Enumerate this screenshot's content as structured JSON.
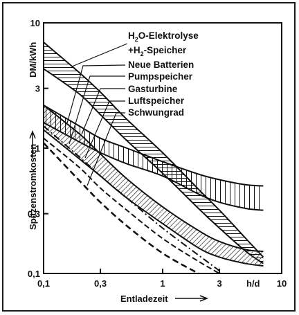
{
  "chart_data": {
    "type": "line",
    "title": "",
    "xlabel": "Entladezeit",
    "x_unit": "h/d",
    "ylabel": "Spitzenstromkosten",
    "y_unit": "DM/kWh",
    "xscale": "log",
    "yscale": "log",
    "xlim": [
      0.1,
      10
    ],
    "ylim": [
      0.1,
      10
    ],
    "x_ticks": [
      {
        "value": 0.1,
        "label": "0,1"
      },
      {
        "value": 0.3,
        "label": "0,3"
      },
      {
        "value": 1,
        "label": "1"
      },
      {
        "value": 3,
        "label": "3"
      },
      {
        "value": 10,
        "label": "10"
      }
    ],
    "y_ticks": [
      {
        "value": 0.1,
        "label": "0,1"
      },
      {
        "value": 0.3,
        "label": "0,3"
      },
      {
        "value": 1,
        "label": "1"
      },
      {
        "value": 3,
        "label": "3"
      },
      {
        "value": 10,
        "label": "10"
      }
    ],
    "grid": false,
    "series": [
      {
        "name": "H2O-Elektrolyse + H2-Speicher",
        "style": "band-horizontal-hatch",
        "x": [
          0.1,
          0.2,
          0.3,
          0.5,
          1,
          2,
          3,
          5,
          7
        ],
        "upper": [
          7.0,
          4.0,
          2.8,
          1.7,
          0.92,
          0.47,
          0.32,
          0.19,
          0.135
        ],
        "lower": [
          4.3,
          2.7,
          1.85,
          1.15,
          0.63,
          0.33,
          0.23,
          0.15,
          0.12
        ]
      },
      {
        "name": "Neue Batterien",
        "style": "band-vertical-hatch",
        "x": [
          0.1,
          0.2,
          0.3,
          0.5,
          1,
          2,
          3,
          5,
          7
        ],
        "upper": [
          2.2,
          1.5,
          1.2,
          1.0,
          0.78,
          0.62,
          0.56,
          0.51,
          0.5
        ],
        "lower": [
          1.6,
          1.12,
          0.92,
          0.75,
          0.6,
          0.43,
          0.37,
          0.33,
          0.32
        ]
      },
      {
        "name": "Pumpspeicher",
        "style": "band-diagonal-hatch",
        "x": [
          0.1,
          0.2,
          0.3,
          0.5,
          1,
          2,
          3,
          5,
          7
        ],
        "upper": [
          2.2,
          1.3,
          0.9,
          0.57,
          0.34,
          0.22,
          0.18,
          0.155,
          0.15
        ],
        "lower": [
          1.4,
          0.82,
          0.6,
          0.4,
          0.25,
          0.16,
          0.135,
          0.12,
          0.115
        ]
      },
      {
        "name": "Gasturbine",
        "style": "dash-dot",
        "x": [
          0.1,
          0.2,
          0.3,
          0.5,
          1,
          2,
          3
        ],
        "y": [
          1.5,
          0.85,
          0.6,
          0.4,
          0.23,
          0.14,
          0.105
        ]
      },
      {
        "name": "Luftspeicher",
        "style": "dashed",
        "x": [
          0.1,
          0.2,
          0.3,
          0.5,
          1,
          2,
          3
        ],
        "y": [
          1.2,
          0.7,
          0.48,
          0.32,
          0.19,
          0.125,
          0.1
        ]
      },
      {
        "name": "Schwungrad",
        "style": "dashed-bold",
        "x": [
          0.1,
          0.2,
          0.3,
          0.5,
          1,
          2
        ],
        "y": [
          1.1,
          0.55,
          0.37,
          0.24,
          0.145,
          0.1
        ]
      }
    ]
  },
  "legend": [
    {
      "id": "h2o",
      "parts": [
        "H",
        "2",
        "O-Elektrolyse"
      ]
    },
    {
      "id": "h2s",
      "parts": [
        "+H",
        "2",
        "-Speicher"
      ]
    },
    {
      "id": "bat",
      "text": "Neue Batterien"
    },
    {
      "id": "pump",
      "text": "Pumpspeicher"
    },
    {
      "id": "gas",
      "text": "Gasturbine"
    },
    {
      "id": "luft",
      "text": "Luftspeicher"
    },
    {
      "id": "schw",
      "text": "Schwungrad"
    }
  ],
  "colors": {
    "ink": "#111111",
    "background": "#ffffff"
  }
}
